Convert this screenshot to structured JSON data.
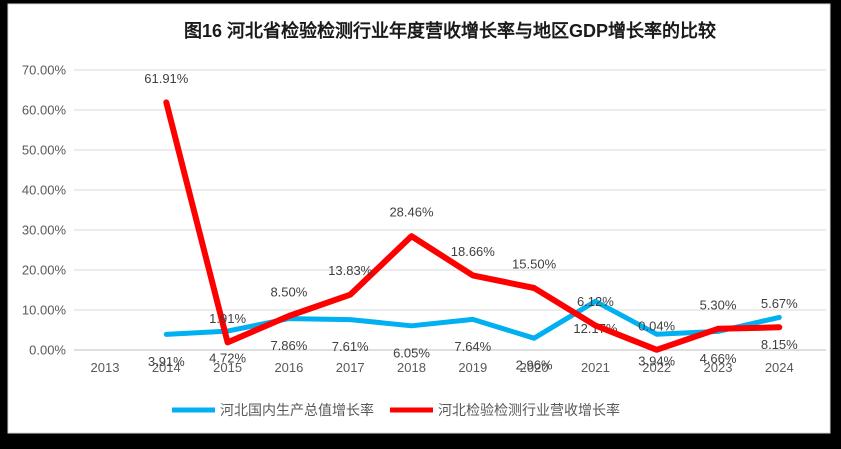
{
  "window": {
    "frame_color": "#000000",
    "panel_color": "#ffffff",
    "panel_border_color": "#d9d9d9"
  },
  "chart_data": {
    "type": "line",
    "title": "图16 河北省检验检测行业年度营收增长率与地区GDP增长率的比较",
    "categories": [
      "2013",
      "2014",
      "2015",
      "2016",
      "2017",
      "2018",
      "2019",
      "2020",
      "2021",
      "2022",
      "2023",
      "2024"
    ],
    "series": [
      {
        "name": "河北国内生产总值增长率",
        "color": "#00B0F0",
        "label_position": "below",
        "values": [
          null,
          3.91,
          4.72,
          7.86,
          7.61,
          6.05,
          7.64,
          2.96,
          12.17,
          3.94,
          4.66,
          8.15
        ]
      },
      {
        "name": "河北检验检测行业营收增长率",
        "color": "#FF0000",
        "label_position": "above",
        "values": [
          null,
          61.91,
          1.91,
          8.5,
          13.83,
          28.46,
          18.66,
          15.5,
          6.12,
          0.04,
          5.3,
          5.67
        ]
      }
    ],
    "y_axis": {
      "min": 0,
      "max": 70,
      "ticks": [
        70,
        60,
        50,
        40,
        30,
        20,
        10,
        0
      ],
      "tick_labels": [
        "70.00%",
        "60.00%",
        "50.00%",
        "40.00%",
        "30.00%",
        "20.00%",
        "10.00%",
        "0.00%"
      ],
      "format": "percent_two_decimals"
    },
    "grid": true,
    "gridline_color": "#d9d9d9",
    "axis_line_color": "#bfbfbf",
    "axis_text_color": "#595959",
    "data_label_color": "#404040",
    "legend_position": "bottom"
  }
}
